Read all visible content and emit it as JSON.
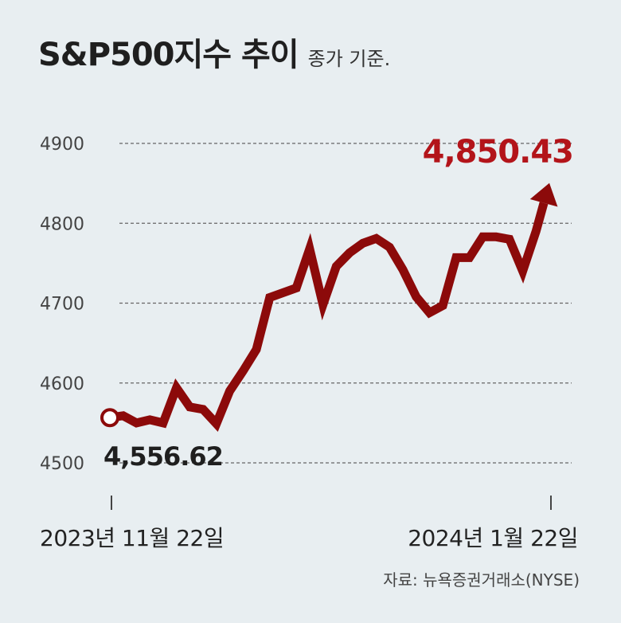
{
  "header": {
    "title": "S&P500지수 추이",
    "subtitle": "종가 기준."
  },
  "chart_data": {
    "type": "line",
    "title": "S&P500지수 추이",
    "subtitle": "종가 기준.",
    "yticks": [
      4900,
      4800,
      4700,
      4600,
      4500
    ],
    "ylim": [
      4500,
      4900
    ],
    "x_range_labels": [
      "2023년 11월 22일",
      "2024년 1월 22일"
    ],
    "series": [
      {
        "values": [
          4556.62,
          4559,
          4550,
          4554,
          4550,
          4594,
          4570,
          4567,
          4549,
          4590,
          4615,
          4642,
          4707,
          4713,
          4719,
          4768,
          4698,
          4746,
          4763,
          4775,
          4781,
          4770,
          4742,
          4708,
          4688,
          4697,
          4757,
          4757,
          4783,
          4783,
          4780,
          4740,
          4790,
          4850.43
        ]
      }
    ],
    "annotations": {
      "start_label": "4,556.62",
      "end_label": "4,850.43"
    },
    "grid": true,
    "line_color": "#8c0a0a",
    "end_label_color": "#b3141a"
  },
  "source": "자료: 뉴욕증권거래소(NYSE)"
}
